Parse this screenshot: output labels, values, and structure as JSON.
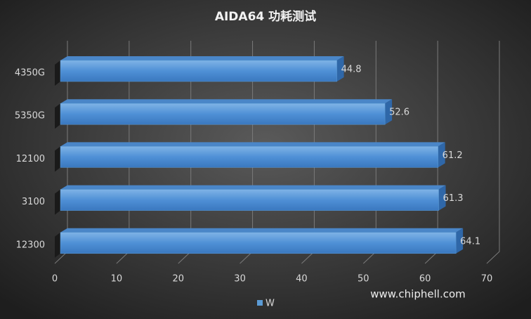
{
  "chart_data": {
    "type": "hbar3d",
    "title": "AIDA64 功耗测试",
    "categories": [
      "4350G",
      "5350G",
      "12100",
      "3100",
      "12300"
    ],
    "series": [
      {
        "name": "W",
        "color": "#5b9bd5",
        "values": [
          44.8,
          52.6,
          61.2,
          61.3,
          64.1
        ]
      }
    ],
    "xlim": [
      0,
      70
    ],
    "xticks": [
      0,
      10,
      20,
      30,
      40,
      50,
      60,
      70
    ],
    "grid": true,
    "watermark": "www.chiphell.com"
  }
}
